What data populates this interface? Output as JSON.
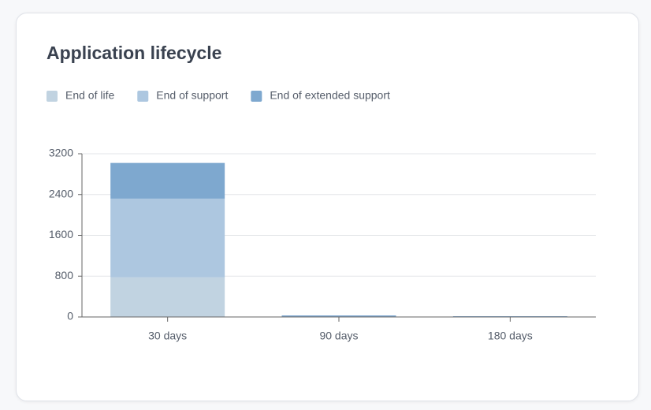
{
  "chart_data": {
    "type": "bar",
    "stacked": true,
    "title": "Application lifecycle",
    "categories": [
      "30 days",
      "90 days",
      "180 days"
    ],
    "series": [
      {
        "name": "End of life",
        "color": "#c1d3e1",
        "values": [
          780,
          0,
          0
        ]
      },
      {
        "name": "End of support",
        "color": "#adc7e0",
        "values": [
          1540,
          0,
          0
        ]
      },
      {
        "name": "End of extended support",
        "color": "#7ea8cf",
        "values": [
          700,
          30,
          15
        ]
      }
    ],
    "ylim": [
      0,
      3200
    ],
    "yticks": [
      0,
      800,
      1600,
      2400,
      3200
    ],
    "grid": true,
    "legend": "top-left"
  }
}
